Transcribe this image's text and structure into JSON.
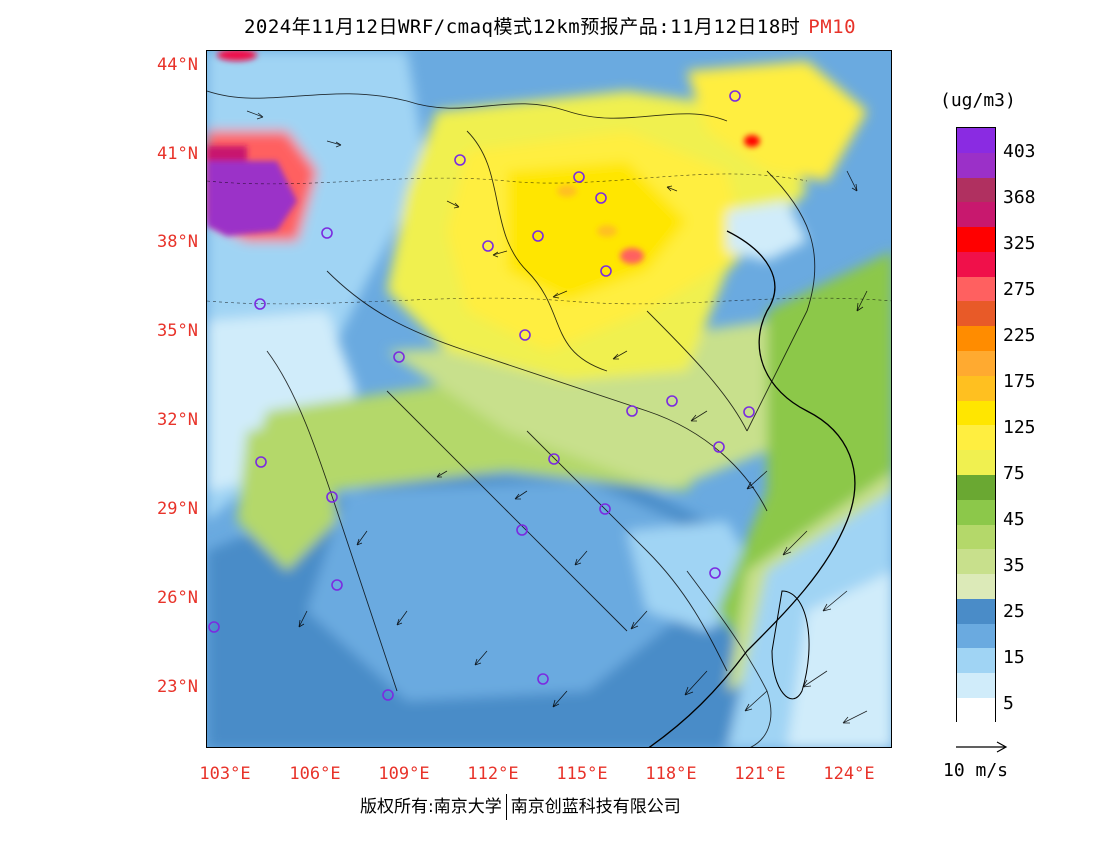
{
  "title": {
    "main": "2024年11月12日WRF/cmaq模式12km预报产品:11月12日18时",
    "species": "PM10"
  },
  "axes": {
    "lat_labels": [
      "44°N",
      "41°N",
      "38°N",
      "35°N",
      "32°N",
      "29°N",
      "26°N",
      "23°N"
    ],
    "lon_labels": [
      "103°E",
      "106°E",
      "109°E",
      "112°E",
      "115°E",
      "118°E",
      "121°E",
      "124°E"
    ]
  },
  "legend": {
    "unit": "(ug/m3)",
    "labels": [
      "403",
      "368",
      "325",
      "275",
      "225",
      "175",
      "125",
      "75",
      "45",
      "35",
      "25",
      "15",
      "5"
    ],
    "colors": [
      "#8a2be2",
      "#9b30c8",
      "#b03060",
      "#c8186e",
      "#ff0000",
      "#f0104a",
      "#ff6060",
      "#e85a28",
      "#ff8c00",
      "#ffaa30",
      "#ffc020",
      "#ffe600",
      "#ffee40",
      "#f0f050",
      "#6aa832",
      "#8cc84a",
      "#b4d86a",
      "#c8e08c",
      "#dceab8",
      "#4a8cc8",
      "#6aaae0",
      "#a0d4f4",
      "#d0ecfa",
      "#ffffff"
    ]
  },
  "wind": {
    "label": "10 m/s"
  },
  "copyright": {
    "part1": "版权所有:南京大学",
    "part2": "南京创蓝科技有限公司"
  },
  "map": {
    "background_color": "#4a8cc8",
    "description_colors": {
      "low": "#6aaae0",
      "very_low": "#d0ecfa",
      "moderate": "#b4d86a",
      "high": "#ffee40",
      "very_high": "#ffe600",
      "extreme": "#9b30c8"
    }
  }
}
